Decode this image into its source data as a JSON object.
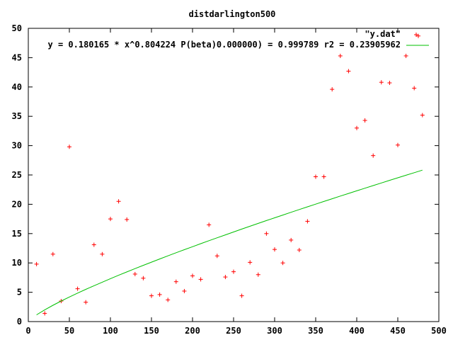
{
  "chart_data": {
    "type": "scatter",
    "title": "distdarlington500",
    "xlabel": "",
    "ylabel": "",
    "xlim": [
      0,
      500
    ],
    "ylim": [
      0,
      50
    ],
    "x_ticks": [
      0,
      50,
      100,
      150,
      200,
      250,
      300,
      350,
      400,
      450,
      500
    ],
    "y_ticks": [
      0,
      5,
      10,
      15,
      20,
      25,
      30,
      35,
      40,
      45,
      50
    ],
    "grid": false,
    "legend_position": "top-right",
    "series": [
      {
        "name": "\"y.dat\"",
        "kind": "points",
        "marker": "+",
        "color": "#ff0000",
        "points": [
          [
            10,
            9.8
          ],
          [
            20,
            1.4
          ],
          [
            30,
            11.5
          ],
          [
            40,
            3.5
          ],
          [
            50,
            29.8
          ],
          [
            60,
            5.6
          ],
          [
            70,
            3.3
          ],
          [
            80,
            13.1
          ],
          [
            90,
            11.5
          ],
          [
            100,
            17.5
          ],
          [
            110,
            20.5
          ],
          [
            120,
            17.4
          ],
          [
            130,
            8.1
          ],
          [
            140,
            7.4
          ],
          [
            150,
            4.4
          ],
          [
            160,
            4.6
          ],
          [
            170,
            3.7
          ],
          [
            180,
            6.8
          ],
          [
            190,
            5.2
          ],
          [
            200,
            7.8
          ],
          [
            210,
            7.2
          ],
          [
            220,
            16.5
          ],
          [
            230,
            11.2
          ],
          [
            240,
            7.6
          ],
          [
            250,
            8.5
          ],
          [
            260,
            4.4
          ],
          [
            270,
            10.1
          ],
          [
            280,
            8.0
          ],
          [
            290,
            15.0
          ],
          [
            300,
            12.3
          ],
          [
            310,
            10.0
          ],
          [
            320,
            13.9
          ],
          [
            330,
            12.2
          ],
          [
            340,
            17.1
          ],
          [
            350,
            24.7
          ],
          [
            360,
            24.7
          ],
          [
            370,
            39.6
          ],
          [
            380,
            45.3
          ],
          [
            390,
            42.7
          ],
          [
            400,
            33.0
          ],
          [
            410,
            34.3
          ],
          [
            420,
            28.3
          ],
          [
            430,
            40.8
          ],
          [
            440,
            40.7
          ],
          [
            450,
            30.1
          ],
          [
            460,
            45.3
          ],
          [
            470,
            39.8
          ],
          [
            475,
            48.7
          ],
          [
            480,
            35.2
          ]
        ]
      },
      {
        "name": "y = 0.180165 * x^0.804224 P(beta)0.000000) = 0.999789 r2 = 0.23905962",
        "kind": "line",
        "color": "#00c000",
        "function": {
          "a": 0.180165,
          "b": 0.804224
        },
        "x_range": [
          10,
          480
        ]
      }
    ]
  }
}
